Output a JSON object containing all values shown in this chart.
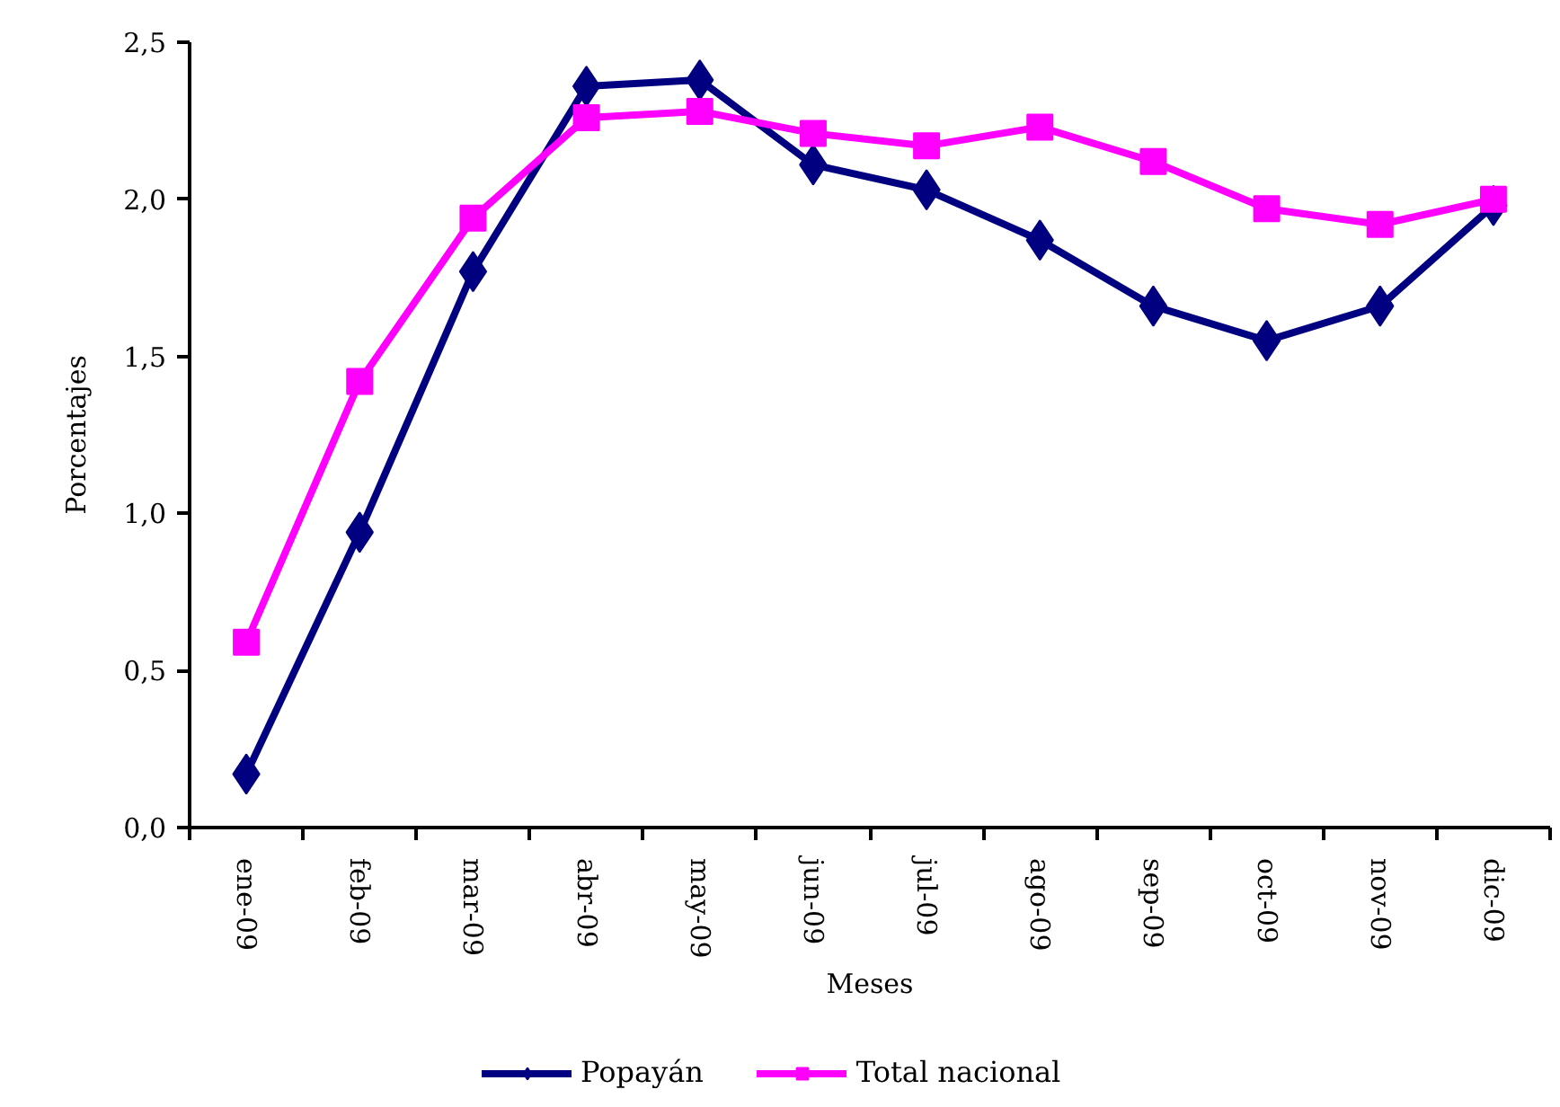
{
  "chart_data": {
    "type": "line",
    "xlabel": "Meses",
    "ylabel": "Porcentajes",
    "categories": [
      "ene-09",
      "feb-09",
      "mar-09",
      "abr-09",
      "may-09",
      "jun-09",
      "jul-09",
      "ago-09",
      "sep-09",
      "oct-09",
      "nov-09",
      "dic-09"
    ],
    "series": [
      {
        "name": "Popayán",
        "color": "#000080",
        "marker": "diamond",
        "values": [
          0.17,
          0.94,
          1.77,
          2.36,
          2.38,
          2.11,
          2.03,
          1.87,
          1.66,
          1.55,
          1.66,
          1.98
        ]
      },
      {
        "name": "Total nacional",
        "color": "#ff00ff",
        "marker": "square",
        "values": [
          0.59,
          1.42,
          1.94,
          2.26,
          2.28,
          2.21,
          2.17,
          2.23,
          2.12,
          1.97,
          1.92,
          2.0
        ]
      }
    ],
    "ylim": [
      0,
      2.5
    ],
    "yticks": [
      {
        "value": 0,
        "label": "0,0"
      },
      {
        "value": 0.5,
        "label": "0,5"
      },
      {
        "value": 1,
        "label": "1,0"
      },
      {
        "value": 1.5,
        "label": "1,5"
      },
      {
        "value": 2,
        "label": "2,0"
      },
      {
        "value": 2.5,
        "label": "2,5"
      }
    ],
    "legend": "bottom",
    "line_style": "solid"
  }
}
